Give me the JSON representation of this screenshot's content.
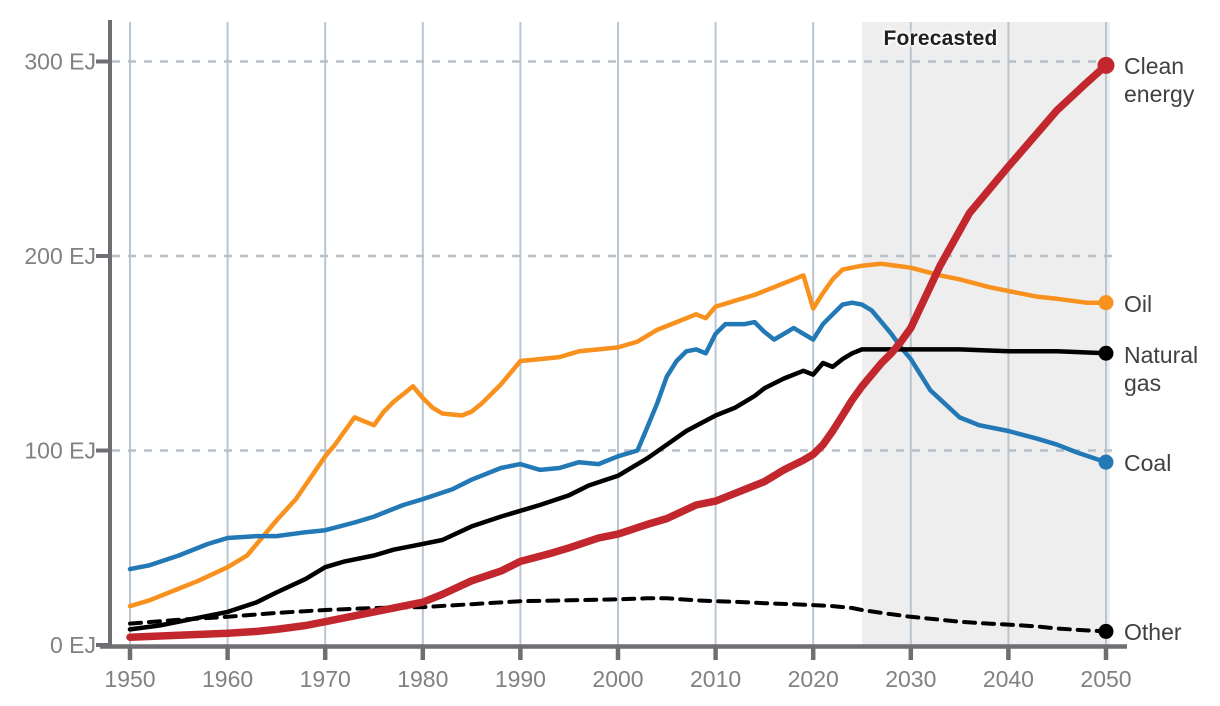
{
  "chart_data": {
    "type": "line",
    "title": "",
    "xlabel": "",
    "ylabel": "EJ",
    "x_range": [
      1950,
      2050
    ],
    "y_range": [
      0,
      300
    ],
    "x_ticks": [
      1950,
      1960,
      1970,
      1980,
      1990,
      2000,
      2010,
      2020,
      2030,
      2040,
      2050
    ],
    "y_ticks": [
      {
        "value": 0,
        "label": "0 EJ"
      },
      {
        "value": 100,
        "label": "100 EJ"
      },
      {
        "value": 200,
        "label": "200 EJ"
      },
      {
        "value": 300,
        "label": "300 EJ"
      }
    ],
    "grid": {
      "vertical_at_x_ticks": true,
      "horizontal_dashed": [
        100,
        200,
        300
      ]
    },
    "legend_position": "right-of-line-ends",
    "forecast_band": {
      "label": "Forecasted",
      "start_year": 2025,
      "end_year": 2050,
      "fill": "#eeeeee"
    },
    "colors": {
      "axis": "#6e6f72",
      "tick_label": "#808184",
      "gridline": "#b9c5d1",
      "gridline_dashed": "#b6c0ca",
      "label_text": "#414042"
    },
    "series": [
      {
        "name": "Clean energy",
        "color": "#c2272d",
        "width": 7.5,
        "dash": null,
        "end_value": 298,
        "points": [
          [
            1950,
            4
          ],
          [
            1955,
            5
          ],
          [
            1960,
            6
          ],
          [
            1963,
            7
          ],
          [
            1965,
            8
          ],
          [
            1968,
            10
          ],
          [
            1970,
            12
          ],
          [
            1973,
            15
          ],
          [
            1975,
            17
          ],
          [
            1978,
            20
          ],
          [
            1980,
            22
          ],
          [
            1982,
            26
          ],
          [
            1985,
            33
          ],
          [
            1988,
            38
          ],
          [
            1990,
            43
          ],
          [
            1993,
            47
          ],
          [
            1995,
            50
          ],
          [
            1998,
            55
          ],
          [
            2000,
            57
          ],
          [
            2003,
            62
          ],
          [
            2005,
            65
          ],
          [
            2008,
            72
          ],
          [
            2010,
            74
          ],
          [
            2012,
            78
          ],
          [
            2015,
            84
          ],
          [
            2017,
            90
          ],
          [
            2019,
            95
          ],
          [
            2020,
            98
          ],
          [
            2021,
            103
          ],
          [
            2022,
            110
          ],
          [
            2023,
            118
          ],
          [
            2024,
            126
          ],
          [
            2025,
            133
          ],
          [
            2026,
            139
          ],
          [
            2027,
            145
          ],
          [
            2028,
            150
          ],
          [
            2029,
            156
          ],
          [
            2030,
            163
          ],
          [
            2033,
            195
          ],
          [
            2036,
            222
          ],
          [
            2040,
            246
          ],
          [
            2045,
            275
          ],
          [
            2048,
            289
          ],
          [
            2050,
            298
          ]
        ]
      },
      {
        "name": "Oil",
        "color": "#f8911d",
        "width": 4.5,
        "dash": null,
        "end_value": 176,
        "points": [
          [
            1950,
            20
          ],
          [
            1952,
            23
          ],
          [
            1955,
            29
          ],
          [
            1957,
            33
          ],
          [
            1960,
            40
          ],
          [
            1962,
            46
          ],
          [
            1965,
            64
          ],
          [
            1967,
            75
          ],
          [
            1970,
            97
          ],
          [
            1971,
            103
          ],
          [
            1972,
            110
          ],
          [
            1973,
            117
          ],
          [
            1974,
            115
          ],
          [
            1975,
            113
          ],
          [
            1976,
            120
          ],
          [
            1977,
            125
          ],
          [
            1978,
            129
          ],
          [
            1979,
            133
          ],
          [
            1980,
            127
          ],
          [
            1981,
            122
          ],
          [
            1982,
            119
          ],
          [
            1984,
            118
          ],
          [
            1985,
            120
          ],
          [
            1986,
            124
          ],
          [
            1988,
            134
          ],
          [
            1990,
            146
          ],
          [
            1992,
            147
          ],
          [
            1994,
            148
          ],
          [
            1996,
            151
          ],
          [
            1998,
            152
          ],
          [
            2000,
            153
          ],
          [
            2002,
            156
          ],
          [
            2004,
            162
          ],
          [
            2006,
            166
          ],
          [
            2008,
            170
          ],
          [
            2009,
            168
          ],
          [
            2010,
            174
          ],
          [
            2012,
            177
          ],
          [
            2014,
            180
          ],
          [
            2016,
            184
          ],
          [
            2018,
            188
          ],
          [
            2019,
            190
          ],
          [
            2020,
            173
          ],
          [
            2021,
            181
          ],
          [
            2022,
            188
          ],
          [
            2023,
            193
          ],
          [
            2025,
            195
          ],
          [
            2027,
            196
          ],
          [
            2030,
            194
          ],
          [
            2033,
            190
          ],
          [
            2035,
            188
          ],
          [
            2038,
            184
          ],
          [
            2040,
            182
          ],
          [
            2043,
            179
          ],
          [
            2045,
            178
          ],
          [
            2048,
            176
          ],
          [
            2050,
            176
          ]
        ]
      },
      {
        "name": "Natural gas",
        "color": "#000000",
        "width": 4.5,
        "dash": null,
        "end_value": 150,
        "points": [
          [
            1950,
            8
          ],
          [
            1953,
            10
          ],
          [
            1955,
            12
          ],
          [
            1958,
            15
          ],
          [
            1960,
            17
          ],
          [
            1963,
            22
          ],
          [
            1965,
            27
          ],
          [
            1968,
            34
          ],
          [
            1970,
            40
          ],
          [
            1972,
            43
          ],
          [
            1975,
            46
          ],
          [
            1977,
            49
          ],
          [
            1980,
            52
          ],
          [
            1982,
            54
          ],
          [
            1985,
            61
          ],
          [
            1988,
            66
          ],
          [
            1990,
            69
          ],
          [
            1992,
            72
          ],
          [
            1995,
            77
          ],
          [
            1997,
            82
          ],
          [
            2000,
            87
          ],
          [
            2003,
            96
          ],
          [
            2005,
            103
          ],
          [
            2007,
            110
          ],
          [
            2010,
            118
          ],
          [
            2012,
            122
          ],
          [
            2014,
            128
          ],
          [
            2015,
            132
          ],
          [
            2017,
            137
          ],
          [
            2019,
            141
          ],
          [
            2020,
            139
          ],
          [
            2021,
            145
          ],
          [
            2022,
            143
          ],
          [
            2023,
            147
          ],
          [
            2024,
            150
          ],
          [
            2025,
            152
          ],
          [
            2030,
            152
          ],
          [
            2035,
            152
          ],
          [
            2040,
            151
          ],
          [
            2045,
            151
          ],
          [
            2050,
            150
          ]
        ]
      },
      {
        "name": "Coal",
        "color": "#2279b5",
        "width": 4.5,
        "dash": null,
        "end_value": 94,
        "points": [
          [
            1950,
            39
          ],
          [
            1952,
            41
          ],
          [
            1955,
            46
          ],
          [
            1958,
            52
          ],
          [
            1960,
            55
          ],
          [
            1963,
            56
          ],
          [
            1965,
            56
          ],
          [
            1968,
            58
          ],
          [
            1970,
            59
          ],
          [
            1973,
            63
          ],
          [
            1975,
            66
          ],
          [
            1978,
            72
          ],
          [
            1980,
            75
          ],
          [
            1983,
            80
          ],
          [
            1985,
            85
          ],
          [
            1988,
            91
          ],
          [
            1990,
            93
          ],
          [
            1992,
            90
          ],
          [
            1994,
            91
          ],
          [
            1996,
            94
          ],
          [
            1998,
            93
          ],
          [
            2000,
            97
          ],
          [
            2002,
            100
          ],
          [
            2003,
            112
          ],
          [
            2004,
            124
          ],
          [
            2005,
            138
          ],
          [
            2006,
            146
          ],
          [
            2007,
            151
          ],
          [
            2008,
            152
          ],
          [
            2009,
            150
          ],
          [
            2010,
            160
          ],
          [
            2011,
            165
          ],
          [
            2013,
            165
          ],
          [
            2014,
            166
          ],
          [
            2015,
            161
          ],
          [
            2016,
            157
          ],
          [
            2017,
            160
          ],
          [
            2018,
            163
          ],
          [
            2019,
            160
          ],
          [
            2020,
            157
          ],
          [
            2021,
            165
          ],
          [
            2022,
            170
          ],
          [
            2023,
            175
          ],
          [
            2024,
            176
          ],
          [
            2025,
            175
          ],
          [
            2026,
            172
          ],
          [
            2027,
            166
          ],
          [
            2028,
            160
          ],
          [
            2029,
            153
          ],
          [
            2030,
            147
          ],
          [
            2032,
            131
          ],
          [
            2035,
            117
          ],
          [
            2037,
            113
          ],
          [
            2040,
            110
          ],
          [
            2043,
            106
          ],
          [
            2045,
            103
          ],
          [
            2047,
            99
          ],
          [
            2050,
            94
          ]
        ]
      },
      {
        "name": "Other",
        "color": "#000000",
        "width": 4,
        "dash": "11 8",
        "end_value": 7,
        "points": [
          [
            1950,
            11
          ],
          [
            1955,
            13
          ],
          [
            1960,
            14.5
          ],
          [
            1965,
            16.5
          ],
          [
            1970,
            18
          ],
          [
            1975,
            19
          ],
          [
            1980,
            19.5
          ],
          [
            1985,
            21
          ],
          [
            1990,
            22.5
          ],
          [
            1995,
            23
          ],
          [
            2000,
            23.5
          ],
          [
            2003,
            24
          ],
          [
            2005,
            24
          ],
          [
            2008,
            23
          ],
          [
            2010,
            22.5
          ],
          [
            2013,
            22
          ],
          [
            2015,
            21.5
          ],
          [
            2018,
            21
          ],
          [
            2020,
            20.5
          ],
          [
            2022,
            20
          ],
          [
            2024,
            19
          ],
          [
            2025,
            18
          ],
          [
            2027,
            16.5
          ],
          [
            2030,
            14.5
          ],
          [
            2033,
            13
          ],
          [
            2035,
            12
          ],
          [
            2038,
            11
          ],
          [
            2040,
            10.5
          ],
          [
            2043,
            9.5
          ],
          [
            2045,
            8.5
          ],
          [
            2048,
            7.5
          ],
          [
            2050,
            7
          ]
        ]
      }
    ]
  }
}
